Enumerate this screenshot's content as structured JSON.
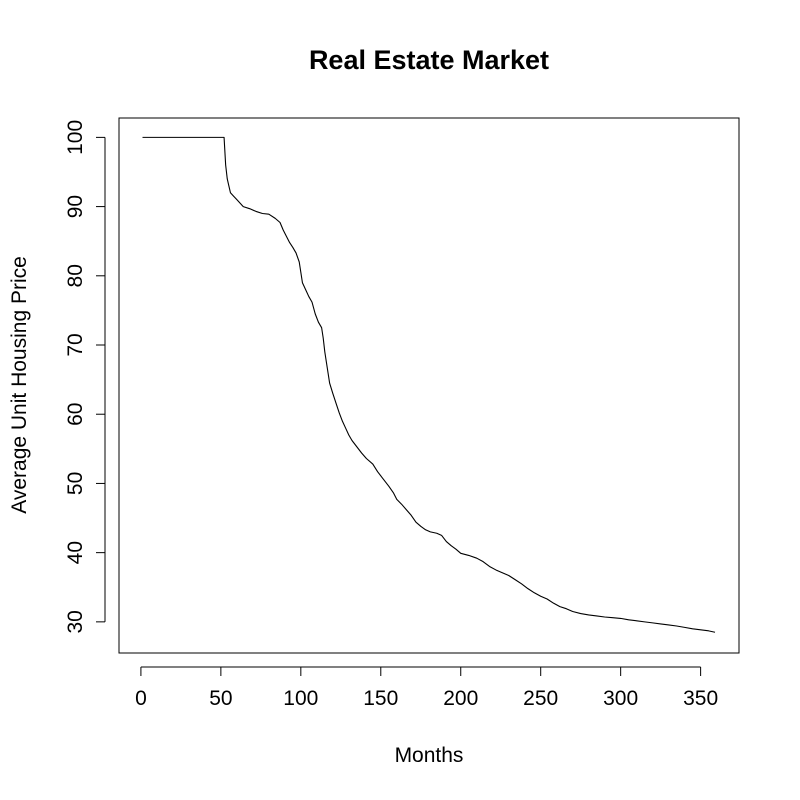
{
  "chart_data": {
    "type": "line",
    "title": "Real Estate Market",
    "xlabel": "Months",
    "ylabel": "Average Unit Housing Price",
    "xlim": [
      -13.7,
      374
    ],
    "ylim": [
      25.5,
      102.8
    ],
    "x_ticks": [
      0,
      50,
      100,
      150,
      200,
      250,
      300,
      350
    ],
    "y_ticks": [
      30,
      40,
      50,
      60,
      70,
      80,
      90,
      100
    ],
    "grid": false,
    "legend": "none",
    "color": "#000000",
    "series": [
      {
        "points": [
          [
            1,
            100
          ],
          [
            52,
            100
          ],
          [
            53,
            96
          ],
          [
            54,
            94
          ],
          [
            55,
            93
          ],
          [
            56,
            92
          ],
          [
            58,
            91.5
          ],
          [
            60,
            91
          ],
          [
            62,
            90.5
          ],
          [
            64,
            90
          ],
          [
            68,
            89.7
          ],
          [
            72,
            89.3
          ],
          [
            76,
            89
          ],
          [
            80,
            88.9
          ],
          [
            84,
            88.3
          ],
          [
            87,
            87.7
          ],
          [
            89,
            86.6
          ],
          [
            91,
            85.7
          ],
          [
            93,
            84.8
          ],
          [
            95,
            84.1
          ],
          [
            97,
            83.3
          ],
          [
            99,
            82
          ],
          [
            100,
            80.5
          ],
          [
            101,
            79
          ],
          [
            103,
            78
          ],
          [
            105,
            77
          ],
          [
            107,
            76.2
          ],
          [
            109,
            74.5
          ],
          [
            111,
            73.3
          ],
          [
            113,
            72.5
          ],
          [
            114,
            71
          ],
          [
            115,
            69
          ],
          [
            116,
            67.5
          ],
          [
            117,
            66
          ],
          [
            118,
            64.5
          ],
          [
            120,
            63
          ],
          [
            122,
            61.6
          ],
          [
            124,
            60.2
          ],
          [
            126,
            59
          ],
          [
            128,
            58
          ],
          [
            130,
            57
          ],
          [
            132,
            56.2
          ],
          [
            135,
            55.3
          ],
          [
            138,
            54.4
          ],
          [
            141,
            53.6
          ],
          [
            145,
            52.8
          ],
          [
            148,
            51.7
          ],
          [
            151,
            50.8
          ],
          [
            155,
            49.6
          ],
          [
            158,
            48.6
          ],
          [
            160,
            47.7
          ],
          [
            163,
            47
          ],
          [
            166,
            46.2
          ],
          [
            169,
            45.4
          ],
          [
            172,
            44.4
          ],
          [
            175,
            43.8
          ],
          [
            178,
            43.3
          ],
          [
            181,
            43
          ],
          [
            185,
            42.8
          ],
          [
            188,
            42.5
          ],
          [
            191,
            41.6
          ],
          [
            194,
            41
          ],
          [
            197,
            40.5
          ],
          [
            200,
            39.9
          ],
          [
            205,
            39.6
          ],
          [
            210,
            39.2
          ],
          [
            214,
            38.7
          ],
          [
            218,
            38
          ],
          [
            222,
            37.5
          ],
          [
            226,
            37.1
          ],
          [
            230,
            36.7
          ],
          [
            234,
            36.1
          ],
          [
            238,
            35.5
          ],
          [
            242,
            34.8
          ],
          [
            246,
            34.2
          ],
          [
            250,
            33.7
          ],
          [
            254,
            33.3
          ],
          [
            258,
            32.7
          ],
          [
            262,
            32.2
          ],
          [
            266,
            31.9
          ],
          [
            270,
            31.5
          ],
          [
            275,
            31.2
          ],
          [
            280,
            31
          ],
          [
            285,
            30.85
          ],
          [
            290,
            30.7
          ],
          [
            295,
            30.6
          ],
          [
            300,
            30.5
          ],
          [
            305,
            30.3
          ],
          [
            310,
            30.15
          ],
          [
            315,
            30
          ],
          [
            320,
            29.85
          ],
          [
            325,
            29.7
          ],
          [
            330,
            29.55
          ],
          [
            335,
            29.4
          ],
          [
            340,
            29.2
          ],
          [
            345,
            29
          ],
          [
            350,
            28.85
          ],
          [
            355,
            28.7
          ],
          [
            359,
            28.5
          ]
        ]
      }
    ]
  }
}
